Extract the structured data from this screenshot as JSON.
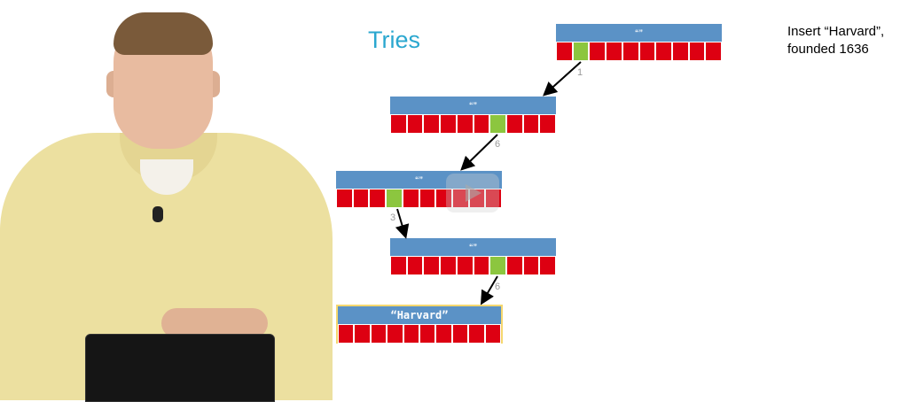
{
  "slide": {
    "title": "Tries",
    "task_line1": "Insert “Harvard”,",
    "task_line2": "founded 1636"
  },
  "trie": {
    "empty_label": "“”",
    "final_label": "“Harvard”",
    "digits": [
      "1",
      "6",
      "3",
      "6"
    ]
  },
  "colors": {
    "title": "#2aa7cf",
    "node_header": "#5b92c6",
    "cell": "#dd0012",
    "selected_cell": "#8cc63f",
    "final_border": "#f5d76e"
  },
  "icons": {
    "play": "play-button-icon"
  }
}
